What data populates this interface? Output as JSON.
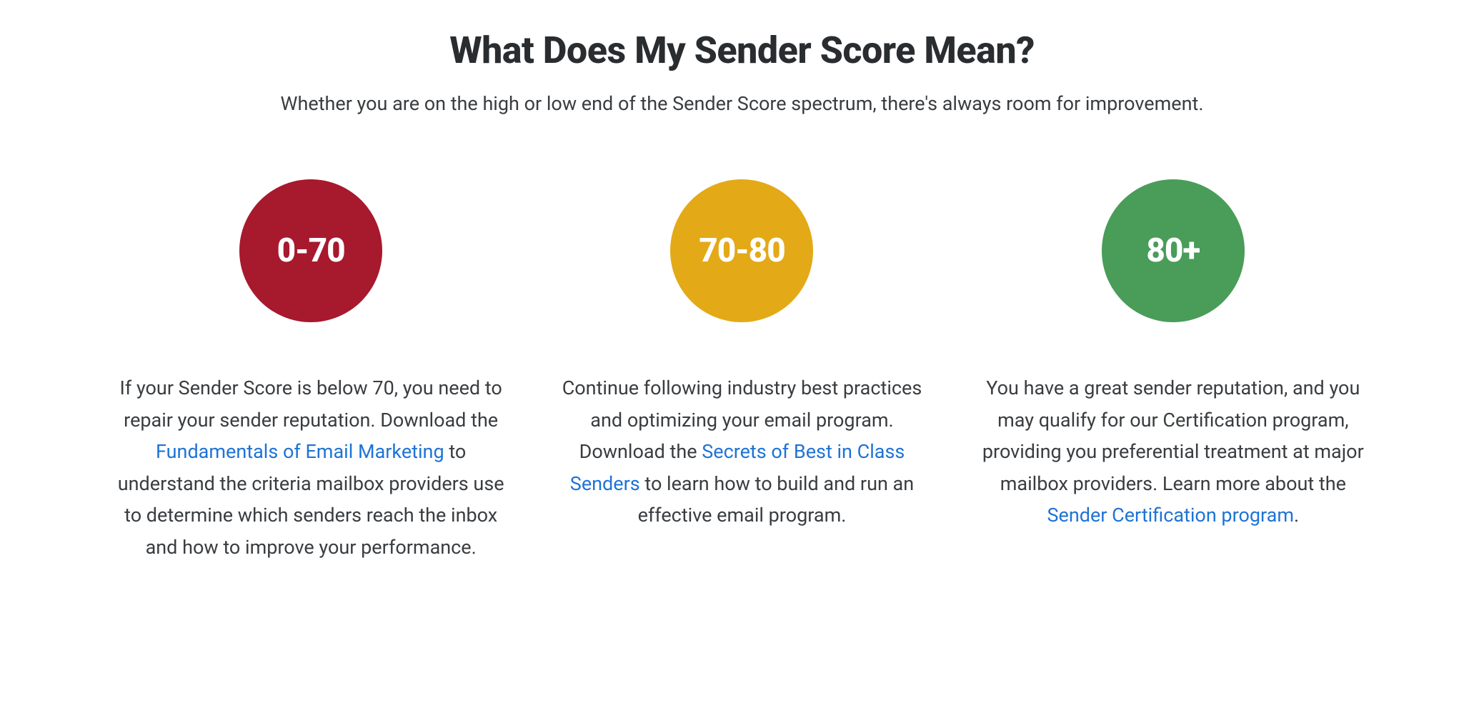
{
  "header": {
    "title": "What Does My Sender Score Mean?",
    "subtitle": "Whether you are on the high or low end of the Sender Score spectrum, there's always room for improvement."
  },
  "colors": {
    "title_text": "#2a2d30",
    "body_text": "#3a3d40",
    "link": "#1e73d6",
    "badge_text": "#ffffff",
    "background": "#ffffff"
  },
  "columns": [
    {
      "range": "0-70",
      "badge_color": "#a7192d",
      "text_before": "If your Sender Score is below 70, you need to repair your sender reputation. Download the ",
      "link_text": "Fundamentals of Email Marketing",
      "text_after": " to understand the criteria mailbox providers use to determine which senders reach the inbox and how to improve your performance."
    },
    {
      "range": "70-80",
      "badge_color": "#e3a917",
      "text_before": "Continue following industry best practices and optimizing your email program. Download the ",
      "link_text": "Secrets of Best in Class Senders",
      "text_after": " to learn how to build and run an effective email program."
    },
    {
      "range": "80+",
      "badge_color": "#4a9c59",
      "text_before": "You have a great sender reputation, and you may qualify for our Certification program, providing you preferential treatment at major mailbox providers. Learn more about the ",
      "link_text": "Sender Certification program",
      "text_after": "."
    }
  ]
}
